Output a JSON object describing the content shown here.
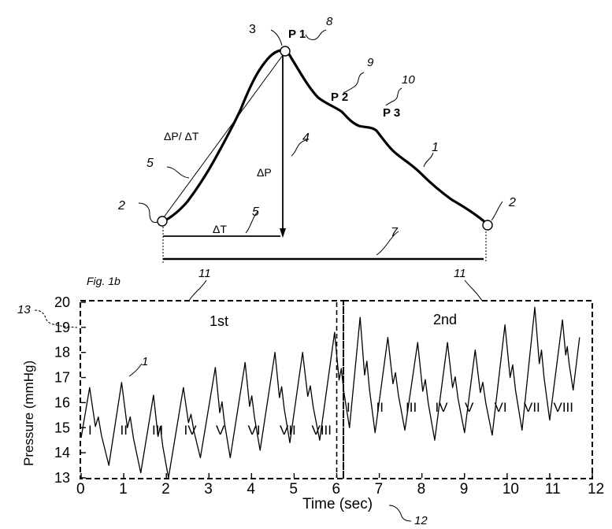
{
  "top_diagram": {
    "ref_numbers": {
      "onset_point": "2",
      "peak_point": "3",
      "dp_line": "4",
      "slope_line": "5",
      "duration_line": "7",
      "p1_ref": "8",
      "p2_ref": "9",
      "p3_ref": "10",
      "waveform": "1"
    },
    "labels": {
      "p1": "P 1",
      "p2": "P 2",
      "p3": "P 3",
      "slope": "ΔP/ ΔT",
      "dp": "ΔP",
      "dt": "ΔT"
    }
  },
  "figure_label": "Fig. 1b",
  "bottom_chart": {
    "ref_numbers": {
      "window_1": "11",
      "window_2": "11",
      "y_axis": "13",
      "x_axis": "12",
      "trace": "1"
    },
    "window_labels": [
      "1st",
      "2nd"
    ],
    "beat_numerals_1": [
      "I",
      "II",
      "III",
      "IV",
      "V",
      "VI",
      "VII",
      "VIII"
    ],
    "beat_numerals_2": [
      "I",
      "II",
      "III",
      "IV",
      "V",
      "VI",
      "VII",
      "VIII"
    ]
  },
  "chart_data": {
    "type": "line",
    "xlabel": "Time (sec)",
    "ylabel": "Pressure (mmHg)",
    "xlim": [
      0,
      12
    ],
    "ylim": [
      13,
      20
    ],
    "x_ticks": [
      "0",
      "1",
      "2",
      "3",
      "4",
      "5",
      "6",
      "7",
      "8",
      "9",
      "10",
      "11",
      "12"
    ],
    "y_ticks": [
      "13",
      "14",
      "15",
      "16",
      "17",
      "18",
      "19",
      "20"
    ],
    "peaks": {
      "t": [
        0.2,
        0.95,
        1.7,
        2.4,
        3.15,
        3.85,
        4.55,
        5.2,
        5.95,
        6.55,
        7.2,
        7.9,
        8.6,
        9.25,
        9.95,
        10.65,
        11.3,
        11.7
      ],
      "p": [
        16.6,
        16.8,
        16.3,
        16.6,
        17.4,
        17.6,
        18.0,
        18.0,
        18.8,
        19.4,
        18.6,
        18.4,
        18.4,
        18.1,
        19.1,
        19.8,
        19.3,
        18.6
      ]
    },
    "troughs": {
      "t": [
        0.0,
        0.65,
        1.4,
        2.05,
        2.8,
        3.5,
        4.2,
        4.9,
        5.6,
        6.3,
        6.9,
        7.6,
        8.3,
        9.0,
        9.65,
        10.35,
        11.0,
        11.55
      ],
      "p": [
        14.6,
        13.5,
        13.2,
        13.0,
        13.8,
        13.8,
        14.1,
        14.4,
        14.5,
        15.0,
        14.8,
        14.9,
        14.5,
        14.8,
        14.7,
        14.9,
        15.3,
        16.5
      ]
    },
    "window_divider_x": 6
  }
}
